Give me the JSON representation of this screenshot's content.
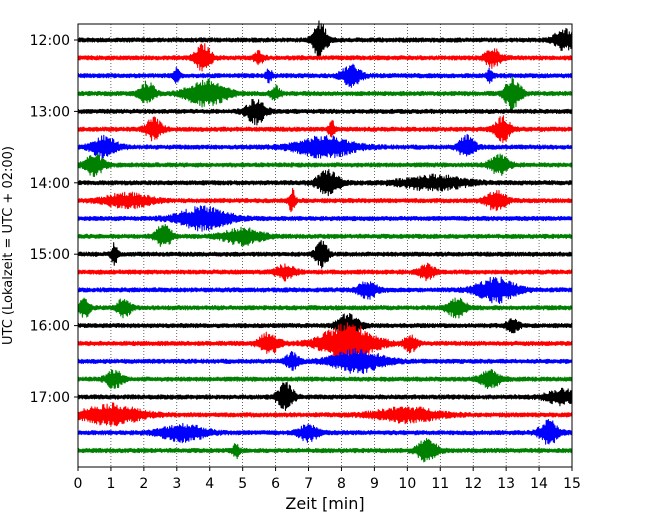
{
  "chart_data": {
    "type": "line",
    "chart_kind": "helicorder seismogram",
    "xlabel": "Zeit  [min]",
    "ylabel": "UTC (Lokalzeit = UTC + 02:00)",
    "xlim": [
      0,
      15
    ],
    "x_ticks": [
      0,
      1,
      2,
      3,
      4,
      5,
      6,
      7,
      8,
      9,
      10,
      11,
      12,
      13,
      14,
      15
    ],
    "x_tick_labels": [
      "0",
      "1",
      "2",
      "3",
      "4",
      "5",
      "6",
      "7",
      "8",
      "9",
      "10",
      "11",
      "12",
      "13",
      "14",
      "15"
    ],
    "y_ticks": [
      {
        "label": "12:00",
        "trace_index": 0
      },
      {
        "label": "13:00",
        "trace_index": 4
      },
      {
        "label": "14:00",
        "trace_index": 8
      },
      {
        "label": "15:00",
        "trace_index": 12
      },
      {
        "label": "16:00",
        "trace_index": 16
      },
      {
        "label": "17:00",
        "trace_index": 20
      }
    ],
    "grid": {
      "vertical_dotted_at_minutes": true
    },
    "trace_interval_min": 15,
    "trace_colors_cycle": [
      "#000000",
      "#ff0000",
      "#0000ff",
      "#008000"
    ],
    "traces": [
      {
        "start": "12:00",
        "color": "#000000",
        "bursts": [
          [
            7.35,
            0.22,
            0.9
          ],
          [
            14.75,
            0.3,
            0.55
          ]
        ]
      },
      {
        "start": "12:15",
        "color": "#ff0000",
        "bursts": [
          [
            3.8,
            0.25,
            0.65
          ],
          [
            5.5,
            0.15,
            0.3
          ],
          [
            12.6,
            0.25,
            0.45
          ]
        ]
      },
      {
        "start": "12:30",
        "color": "#0000ff",
        "bursts": [
          [
            3.0,
            0.1,
            0.35
          ],
          [
            5.8,
            0.1,
            0.3
          ],
          [
            8.3,
            0.3,
            0.5
          ],
          [
            12.5,
            0.1,
            0.3
          ]
        ]
      },
      {
        "start": "12:45",
        "color": "#008000",
        "bursts": [
          [
            2.1,
            0.25,
            0.55
          ],
          [
            3.9,
            0.6,
            0.65
          ],
          [
            6.0,
            0.15,
            0.35
          ],
          [
            13.2,
            0.25,
            0.8
          ]
        ]
      },
      {
        "start": "13:00",
        "color": "#000000",
        "bursts": [
          [
            5.4,
            0.3,
            0.6
          ]
        ]
      },
      {
        "start": "13:15",
        "color": "#ff0000",
        "bursts": [
          [
            2.3,
            0.25,
            0.55
          ],
          [
            7.7,
            0.1,
            0.4
          ],
          [
            12.9,
            0.25,
            0.6
          ]
        ]
      },
      {
        "start": "13:30",
        "color": "#0000ff",
        "bursts": [
          [
            0.8,
            0.4,
            0.5
          ],
          [
            7.5,
            0.9,
            0.5
          ],
          [
            11.8,
            0.25,
            0.55
          ]
        ]
      },
      {
        "start": "13:45",
        "color": "#008000",
        "bursts": [
          [
            0.5,
            0.3,
            0.5
          ],
          [
            12.8,
            0.3,
            0.45
          ]
        ]
      },
      {
        "start": "14:00",
        "color": "#000000",
        "bursts": [
          [
            7.6,
            0.35,
            0.6
          ],
          [
            10.8,
            1.0,
            0.35
          ]
        ]
      },
      {
        "start": "14:15",
        "color": "#ff0000",
        "bursts": [
          [
            1.5,
            0.7,
            0.35
          ],
          [
            6.5,
            0.1,
            0.6
          ],
          [
            12.7,
            0.3,
            0.5
          ]
        ]
      },
      {
        "start": "14:30",
        "color": "#0000ff",
        "bursts": [
          [
            3.8,
            0.8,
            0.55
          ]
        ]
      },
      {
        "start": "14:45",
        "color": "#008000",
        "bursts": [
          [
            2.6,
            0.25,
            0.55
          ],
          [
            5.0,
            0.6,
            0.4
          ]
        ]
      },
      {
        "start": "15:00",
        "color": "#000000",
        "bursts": [
          [
            1.1,
            0.1,
            0.5
          ],
          [
            7.4,
            0.2,
            0.65
          ]
        ]
      },
      {
        "start": "15:15",
        "color": "#ff0000",
        "bursts": [
          [
            6.3,
            0.3,
            0.35
          ],
          [
            10.6,
            0.25,
            0.35
          ]
        ]
      },
      {
        "start": "15:30",
        "color": "#0000ff",
        "bursts": [
          [
            8.8,
            0.3,
            0.4
          ],
          [
            12.7,
            0.6,
            0.6
          ]
        ]
      },
      {
        "start": "15:45",
        "color": "#008000",
        "bursts": [
          [
            0.2,
            0.15,
            0.5
          ],
          [
            1.4,
            0.2,
            0.5
          ],
          [
            11.5,
            0.3,
            0.45
          ]
        ]
      },
      {
        "start": "16:00",
        "color": "#000000",
        "bursts": [
          [
            8.2,
            0.35,
            0.55
          ],
          [
            13.2,
            0.2,
            0.3
          ]
        ]
      },
      {
        "start": "16:15",
        "color": "#ff0000",
        "bursts": [
          [
            5.8,
            0.3,
            0.55
          ],
          [
            8.2,
            0.8,
            1.0
          ],
          [
            10.1,
            0.2,
            0.4
          ]
        ]
      },
      {
        "start": "16:30",
        "color": "#0000ff",
        "bursts": [
          [
            6.5,
            0.2,
            0.4
          ],
          [
            8.5,
            0.8,
            0.55
          ]
        ]
      },
      {
        "start": "16:45",
        "color": "#008000",
        "bursts": [
          [
            1.1,
            0.25,
            0.45
          ],
          [
            12.5,
            0.3,
            0.45
          ]
        ]
      },
      {
        "start": "17:00",
        "color": "#000000",
        "bursts": [
          [
            6.3,
            0.25,
            0.7
          ],
          [
            14.7,
            0.5,
            0.35
          ]
        ]
      },
      {
        "start": "17:15",
        "color": "#ff0000",
        "bursts": [
          [
            1.0,
            0.9,
            0.5
          ],
          [
            10.0,
            1.0,
            0.35
          ]
        ]
      },
      {
        "start": "17:30",
        "color": "#0000ff",
        "bursts": [
          [
            3.2,
            0.7,
            0.4
          ],
          [
            7.0,
            0.3,
            0.4
          ],
          [
            14.3,
            0.3,
            0.6
          ]
        ]
      },
      {
        "start": "17:45",
        "color": "#008000",
        "bursts": [
          [
            4.8,
            0.1,
            0.35
          ],
          [
            10.6,
            0.3,
            0.55
          ]
        ]
      }
    ]
  }
}
